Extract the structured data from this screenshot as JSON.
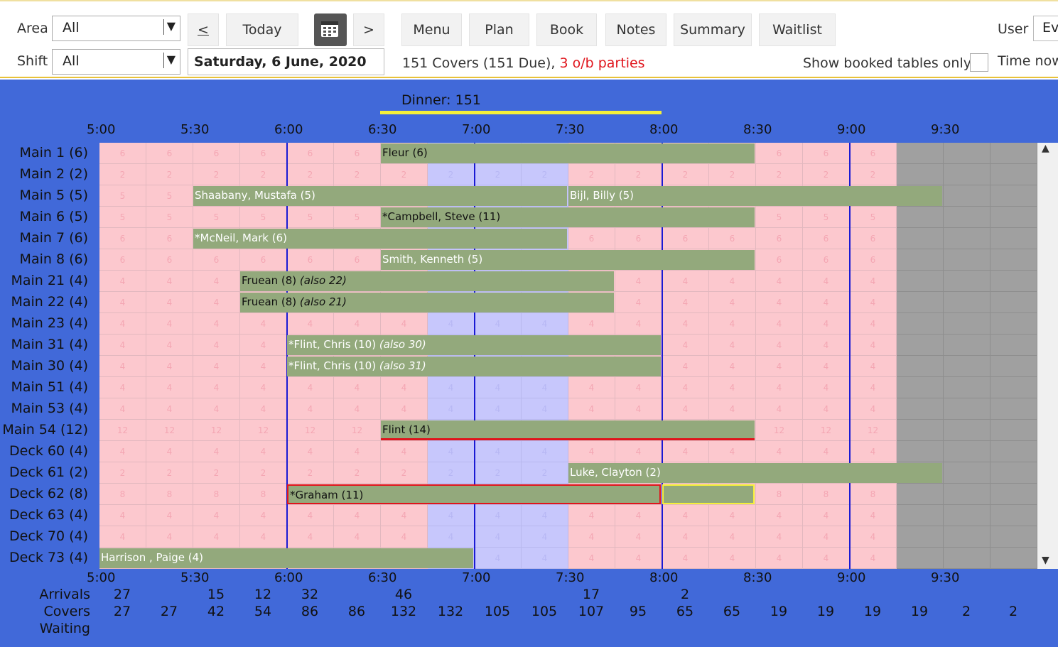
{
  "toolbar": {
    "area_label": "Area",
    "area_value": "All",
    "shift_label": "Shift",
    "shift_value": "All",
    "prev_label": "<",
    "today_label": "Today",
    "next_label": ">",
    "date_value": "Saturday, 6 June, 2020",
    "menu_label": "Menu",
    "plan_label": "Plan",
    "book_label": "Book",
    "notes_label": "Notes",
    "summary_label": "Summary",
    "waitlist_label": "Waitlist",
    "user_label": "User",
    "user_value": "Ev",
    "covers_text": "151 Covers (151 Due),",
    "ob_text": "3 o/b parties",
    "show_booked_label": "Show booked tables only",
    "time_now_label": "Time now",
    "calendar_icon": "calendar-icon",
    "dropdown_icon": "chevron-down-icon"
  },
  "colors": {
    "board_bg": "#4169d9",
    "cell_pink": "#fcc8ce",
    "cell_blue": "#c7c7fc",
    "cell_gray": "#a0a0a0",
    "booking_green": "#93a97c",
    "highlight_red": "#e0141c",
    "highlight_yellow": "#f5f038",
    "overbooked_text": "#e0141c"
  },
  "schedule": {
    "shift_title": "Dinner: 151",
    "time_labels": [
      "5:00",
      "5:30",
      "6:00",
      "6:30",
      "7:00",
      "7:30",
      "8:00",
      "8:30",
      "9:00",
      "9:30"
    ],
    "rows": [
      {
        "label": "Main 1 (6)",
        "seats": "6"
      },
      {
        "label": "Main 2 (2)",
        "seats": "2"
      },
      {
        "label": "Main 5 (5)",
        "seats": "5"
      },
      {
        "label": "Main 6 (5)",
        "seats": "5"
      },
      {
        "label": "Main 7 (6)",
        "seats": "6"
      },
      {
        "label": "Main 8 (6)",
        "seats": "6"
      },
      {
        "label": "Main 21 (4)",
        "seats": "4"
      },
      {
        "label": "Main 22 (4)",
        "seats": "4"
      },
      {
        "label": "Main 23 (4)",
        "seats": "4"
      },
      {
        "label": "Main 31 (4)",
        "seats": "4"
      },
      {
        "label": "Main 30 (4)",
        "seats": "4"
      },
      {
        "label": "Main 51 (4)",
        "seats": "4"
      },
      {
        "label": "Main 53 (4)",
        "seats": "4"
      },
      {
        "label": "Main 54 (12)",
        "seats": "12"
      },
      {
        "label": "Deck 60 (4)",
        "seats": "4"
      },
      {
        "label": "Deck 61 (2)",
        "seats": "2"
      },
      {
        "label": "Deck 62 (8)",
        "seats": "8"
      },
      {
        "label": "Deck 63 (4)",
        "seats": "4"
      },
      {
        "label": "Deck 70 (4)",
        "seats": "4"
      },
      {
        "label": "Deck 73 (4)",
        "seats": "4"
      }
    ],
    "bookings": [
      {
        "row": 0,
        "start": "6:30",
        "end": "8:30",
        "text": "Fleur (6)",
        "style": "dark"
      },
      {
        "row": 2,
        "start": "5:30",
        "end": "7:30",
        "text": "Shaabany, Mustafa (5)",
        "style": ""
      },
      {
        "row": 2,
        "start": "7:30",
        "end": "9:30",
        "text": "Bijl, Billy (5)",
        "style": ""
      },
      {
        "row": 3,
        "start": "6:30",
        "end": "8:30",
        "text": "*Campbell, Steve (11)",
        "style": "dark"
      },
      {
        "row": 4,
        "start": "5:30",
        "end": "7:30",
        "text": "*McNeil, Mark (6)",
        "style": ""
      },
      {
        "row": 5,
        "start": "6:30",
        "end": "8:30",
        "text": "Smith, Kenneth (5)",
        "style": ""
      },
      {
        "row": 6,
        "start": "5:45",
        "end": "7:45",
        "text": "Fruean (8)",
        "also": "(also 22)",
        "style": "dark"
      },
      {
        "row": 7,
        "start": "5:45",
        "end": "7:45",
        "text": "Fruean (8)",
        "also": "(also 21)",
        "style": "dark"
      },
      {
        "row": 9,
        "start": "6:00",
        "end": "8:00",
        "text": "*Flint, Chris (10)",
        "also": "(also 30)",
        "style": ""
      },
      {
        "row": 10,
        "start": "6:00",
        "end": "8:00",
        "text": "*Flint, Chris (10)",
        "also": "(also 31)",
        "style": ""
      },
      {
        "row": 13,
        "start": "6:30",
        "end": "8:30",
        "text": "Flint (14)",
        "style": "redline"
      },
      {
        "row": 15,
        "start": "7:30",
        "end": "9:30",
        "text": "Luke, Clayton (2)",
        "style": ""
      },
      {
        "row": 16,
        "start": "6:00",
        "end": "8:00",
        "text": "*Graham (11)",
        "style": "red"
      },
      {
        "row": 16,
        "start": "8:00",
        "end": "8:30",
        "text": "",
        "style": "yellow"
      },
      {
        "row": 19,
        "start": "5:00",
        "end": "7:00",
        "text": "Harrison , Paige (4)",
        "style": ""
      }
    ],
    "footer": {
      "arrivals_label": "Arrivals",
      "covers_label": "Covers",
      "waiting_label": "Waiting",
      "arrivals": [
        "27",
        "",
        "15",
        "12",
        "32",
        "",
        "46",
        "",
        "",
        "",
        "17",
        "",
        "2",
        "",
        "",
        "",
        "",
        "",
        "",
        ""
      ],
      "covers": [
        "27",
        "27",
        "42",
        "54",
        "86",
        "86",
        "132",
        "132",
        "105",
        "105",
        "107",
        "95",
        "65",
        "65",
        "19",
        "19",
        "19",
        "19",
        "2",
        "2"
      ],
      "waiting": []
    }
  }
}
